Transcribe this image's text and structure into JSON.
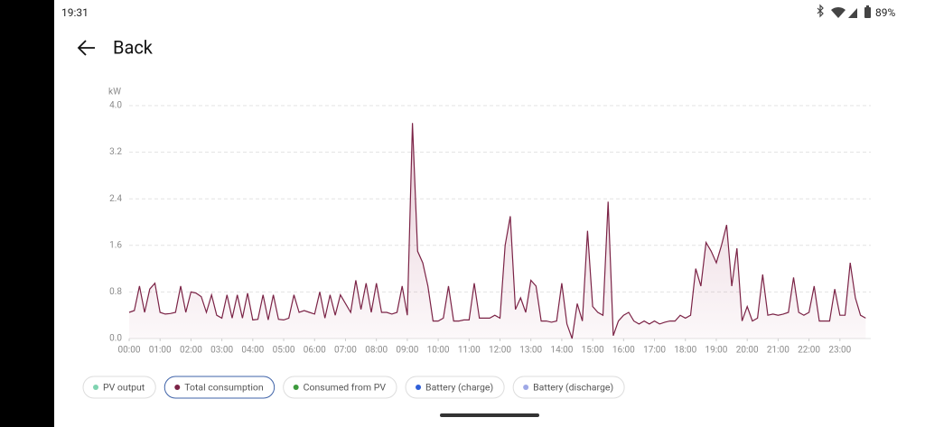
{
  "status_bar": {
    "time": "19:31",
    "battery": "89%"
  },
  "header": {
    "back": "Back"
  },
  "chart_data": {
    "type": "line",
    "y_unit": "kW",
    "x": [
      0,
      10,
      20,
      30,
      40,
      50,
      60,
      70,
      80,
      90,
      100,
      110,
      120,
      130,
      140,
      150,
      160,
      170,
      180,
      190,
      200,
      210,
      220,
      230,
      240,
      250,
      260,
      270,
      280,
      290,
      300,
      310,
      320,
      330,
      340,
      350,
      360,
      370,
      380,
      390,
      400,
      410,
      420,
      430,
      440,
      450,
      460,
      470,
      480,
      490,
      500,
      510,
      520,
      530,
      540,
      550,
      560,
      570,
      580,
      590,
      600,
      610,
      620,
      630,
      640,
      650,
      660,
      670,
      680,
      690,
      700,
      710,
      720,
      730,
      740,
      750,
      760,
      770,
      780,
      790,
      800,
      810,
      820,
      830,
      840,
      850,
      860,
      870,
      880,
      890,
      900,
      910,
      920,
      930,
      940,
      950,
      960,
      970,
      980,
      990,
      1000,
      1010,
      1020,
      1030,
      1040,
      1050,
      1060,
      1070,
      1080,
      1090,
      1100,
      1110,
      1120,
      1130,
      1140,
      1150,
      1160,
      1170,
      1180,
      1190,
      1200,
      1210,
      1220,
      1230,
      1240,
      1250,
      1260,
      1270,
      1280,
      1290,
      1300,
      1310,
      1320,
      1330,
      1340,
      1350,
      1360,
      1370,
      1380,
      1390,
      1400,
      1410,
      1420,
      1430
    ],
    "series": [
      {
        "name": "PV output",
        "color": "#7fd3b0"
      },
      {
        "name": "Total consumption",
        "color": "#7b2346",
        "active": true,
        "values": [
          0.45,
          0.48,
          0.9,
          0.45,
          0.85,
          0.95,
          0.45,
          0.42,
          0.43,
          0.45,
          0.9,
          0.45,
          0.8,
          0.78,
          0.72,
          0.45,
          0.75,
          0.4,
          0.35,
          0.75,
          0.35,
          0.75,
          0.35,
          0.78,
          0.32,
          0.33,
          0.75,
          0.32,
          0.75,
          0.33,
          0.32,
          0.35,
          0.75,
          0.45,
          0.48,
          0.45,
          0.42,
          0.8,
          0.35,
          0.75,
          0.4,
          0.75,
          0.6,
          0.45,
          1.0,
          0.5,
          0.95,
          0.45,
          0.95,
          0.45,
          0.45,
          0.42,
          0.45,
          0.9,
          0.4,
          3.7,
          1.5,
          1.3,
          0.9,
          0.3,
          0.3,
          0.35,
          0.9,
          0.3,
          0.3,
          0.32,
          0.32,
          0.95,
          0.35,
          0.35,
          0.35,
          0.4,
          0.35,
          1.6,
          2.1,
          0.5,
          0.7,
          0.45,
          1.0,
          0.9,
          0.3,
          0.3,
          0.28,
          0.3,
          0.95,
          0.25,
          0.0,
          0.6,
          0.3,
          1.85,
          0.55,
          0.45,
          0.4,
          2.35,
          0.05,
          0.3,
          0.4,
          0.45,
          0.3,
          0.25,
          0.3,
          0.25,
          0.3,
          0.25,
          0.28,
          0.3,
          0.3,
          0.4,
          0.35,
          0.4,
          1.2,
          0.9,
          1.65,
          1.5,
          1.3,
          1.6,
          1.95,
          0.9,
          1.55,
          0.3,
          0.55,
          0.3,
          0.35,
          1.1,
          0.4,
          0.42,
          0.4,
          0.42,
          0.45,
          1.05,
          0.45,
          0.4,
          0.45,
          0.9,
          0.3,
          0.3,
          0.3,
          0.85,
          0.4,
          0.4,
          1.3,
          0.7,
          0.4,
          0.35
        ]
      },
      {
        "name": "Consumed from PV",
        "color": "#3d9a3d"
      },
      {
        "name": "Battery (charge)",
        "color": "#2f5fd8"
      },
      {
        "name": "Battery (discharge)",
        "color": "#9ea8e6"
      }
    ],
    "xlim": [
      0,
      1440
    ],
    "xticks": [
      {
        "value": 0,
        "label": "00:00"
      },
      {
        "value": 60,
        "label": "01:00"
      },
      {
        "value": 120,
        "label": "02:00"
      },
      {
        "value": 180,
        "label": "03:00"
      },
      {
        "value": 240,
        "label": "04:00"
      },
      {
        "value": 300,
        "label": "05:00"
      },
      {
        "value": 360,
        "label": "06:00"
      },
      {
        "value": 420,
        "label": "07:00"
      },
      {
        "value": 480,
        "label": "08:00"
      },
      {
        "value": 540,
        "label": "09:00"
      },
      {
        "value": 600,
        "label": "10:00"
      },
      {
        "value": 660,
        "label": "11:00"
      },
      {
        "value": 720,
        "label": "12:00"
      },
      {
        "value": 780,
        "label": "13:00"
      },
      {
        "value": 840,
        "label": "14:00"
      },
      {
        "value": 900,
        "label": "15:00"
      },
      {
        "value": 960,
        "label": "16:00"
      },
      {
        "value": 1020,
        "label": "17:00"
      },
      {
        "value": 1080,
        "label": "18:00"
      },
      {
        "value": 1140,
        "label": "19:00"
      },
      {
        "value": 1200,
        "label": "20:00"
      },
      {
        "value": 1260,
        "label": "21:00"
      },
      {
        "value": 1320,
        "label": "22:00"
      },
      {
        "value": 1380,
        "label": "23:00"
      }
    ],
    "ylim": [
      0,
      4
    ],
    "yticks": [
      {
        "value": 0,
        "label": "0.0"
      },
      {
        "value": 0.8,
        "label": "0.8"
      },
      {
        "value": 1.6,
        "label": "1.6"
      },
      {
        "value": 2.4,
        "label": "2.4"
      },
      {
        "value": 3.2,
        "label": "3.2"
      },
      {
        "value": 4,
        "label": "4.0"
      }
    ],
    "grid": true
  }
}
